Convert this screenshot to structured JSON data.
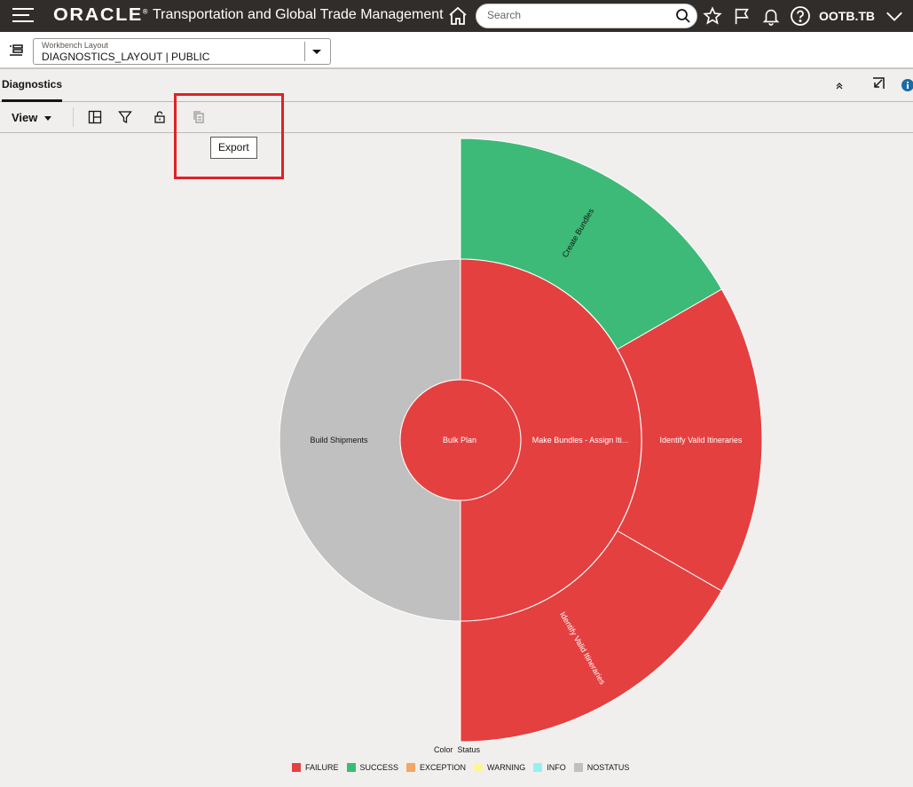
{
  "header": {
    "brand": "ORACLE",
    "app_title": "Transportation and Global Trade Management",
    "search_placeholder": "Search",
    "user": "OOTB.TB"
  },
  "workbench": {
    "label": "Workbench Layout",
    "value": "DIAGNOSTICS_LAYOUT | PUBLIC"
  },
  "panel": {
    "title": "Diagnostics"
  },
  "toolbar": {
    "view_label": "View",
    "tooltip": "Export"
  },
  "colors": {
    "FAILURE": "#e54040",
    "SUCCESS": "#3dba78",
    "EXCEPTION": "#f0a864",
    "WARNING": "#fdf59a",
    "INFO": "#93f1f5",
    "NOSTATUS": "#c0c0c0"
  },
  "chart_data": {
    "type": "sunburst",
    "root": {
      "label": "Bulk Plan",
      "status": "FAILURE",
      "children": [
        {
          "label": "Make Bundles - Assign Iti...",
          "status": "FAILURE",
          "children": [
            {
              "label": "Create Bundles",
              "status": "SUCCESS"
            },
            {
              "label": "Identify Valid Itineraries",
              "status": "FAILURE"
            },
            {
              "label": "Identify Valid Itineraries",
              "status": "FAILURE"
            }
          ]
        },
        {
          "label": "Build Shipments",
          "status": "NOSTATUS",
          "children": []
        }
      ]
    },
    "legend_title": "Color",
    "legend_subtitle": "Status",
    "legend": [
      "FAILURE",
      "SUCCESS",
      "EXCEPTION",
      "WARNING",
      "INFO",
      "NOSTATUS"
    ]
  }
}
